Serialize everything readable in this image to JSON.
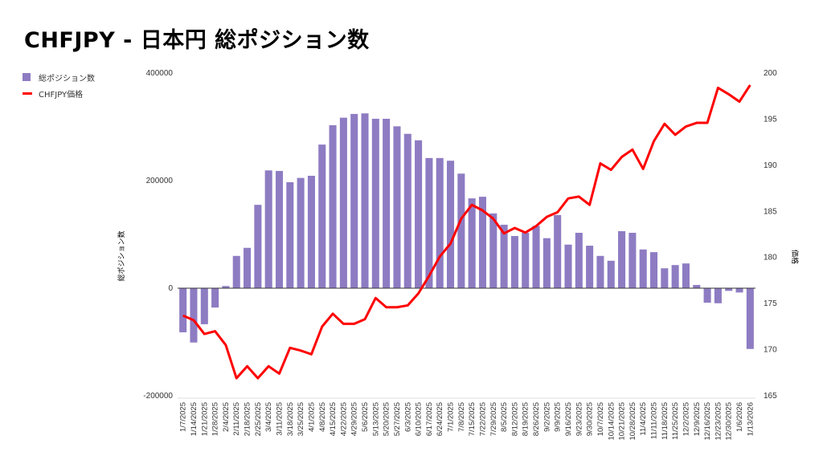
{
  "chart_data": {
    "type": "bar+line",
    "title": "CHFJPY - 日本円 総ポジション数",
    "legend_position": "top-left",
    "legend": [
      "総ポジション数",
      "CHFJPY価格"
    ],
    "ylabel_left": "総ポジション数",
    "ylabel_right": "価格",
    "ylim_left": [
      -200000,
      400000
    ],
    "yticks_left": [
      "400000",
      "200000",
      "0",
      "-200000"
    ],
    "ylim_right": [
      165,
      200
    ],
    "yticks_right": [
      "200",
      "195",
      "190",
      "185",
      "180",
      "175",
      "170",
      "165"
    ],
    "colors": {
      "bars": "#8e7cc3",
      "line": "#ff0000"
    },
    "categories": [
      "1/7/2025",
      "1/14/2025",
      "1/21/2025",
      "1/28/2025",
      "2/4/2025",
      "2/11/2025",
      "2/18/2025",
      "2/25/2025",
      "3/4/2025",
      "3/11/2025",
      "3/18/2025",
      "3/25/2025",
      "4/1/2025",
      "4/8/2025",
      "4/15/2025",
      "4/22/2025",
      "4/29/2025",
      "5/6/2025",
      "5/13/2025",
      "5/20/2025",
      "5/27/2025",
      "6/3/2025",
      "6/10/2025",
      "6/17/2025",
      "6/24/2025",
      "7/1/2025",
      "7/8/2025",
      "7/15/2025",
      "7/22/2025",
      "7/29/2025",
      "8/5/2025",
      "8/12/2025",
      "8/19/2025",
      "8/26/2025",
      "9/2/2025",
      "9/9/2025",
      "9/16/2025",
      "9/23/2025",
      "9/30/2025",
      "10/7/2025",
      "10/14/2025",
      "10/21/2025",
      "10/28/2025",
      "11/4/2025",
      "11/11/2025",
      "11/18/2025",
      "11/25/2025",
      "12/2/2025",
      "12/9/2025",
      "12/16/2025",
      "12/23/2025",
      "12/30/2025",
      "1/6/2026",
      "1/13/2026"
    ],
    "series": [
      {
        "name": "総ポジション数",
        "type": "bar",
        "axis": "left",
        "values": [
          -82000,
          -101000,
          -67000,
          -36000,
          4000,
          60000,
          75000,
          155000,
          219000,
          218000,
          197000,
          205000,
          209000,
          267000,
          303000,
          317000,
          324000,
          325000,
          315000,
          315000,
          301000,
          287000,
          275000,
          242000,
          242000,
          237000,
          213000,
          167000,
          170000,
          139000,
          118000,
          97000,
          103000,
          116000,
          93000,
          136000,
          81000,
          103000,
          79000,
          60000,
          51000,
          106000,
          103000,
          72000,
          67000,
          37000,
          43000,
          46000,
          6000,
          -27000,
          -28000,
          -5000,
          -8000,
          -113000
        ]
      },
      {
        "name": "CHFJPY価格",
        "type": "line",
        "axis": "right",
        "values": [
          173.7,
          173.2,
          171.7,
          172.0,
          170.5,
          166.9,
          168.2,
          166.9,
          168.2,
          167.4,
          170.2,
          169.9,
          169.5,
          172.5,
          173.9,
          172.8,
          172.8,
          173.3,
          175.6,
          174.6,
          174.6,
          174.8,
          176.1,
          178.0,
          180.1,
          181.5,
          184.2,
          185.7,
          185.1,
          184.2,
          182.6,
          183.2,
          182.7,
          183.4,
          184.4,
          184.9,
          186.4,
          186.6,
          185.7,
          190.2,
          189.5,
          190.9,
          191.7,
          189.6,
          192.6,
          194.5,
          193.3,
          194.2,
          194.6,
          194.6,
          198.4,
          197.7,
          196.9,
          198.7
        ]
      }
    ]
  }
}
